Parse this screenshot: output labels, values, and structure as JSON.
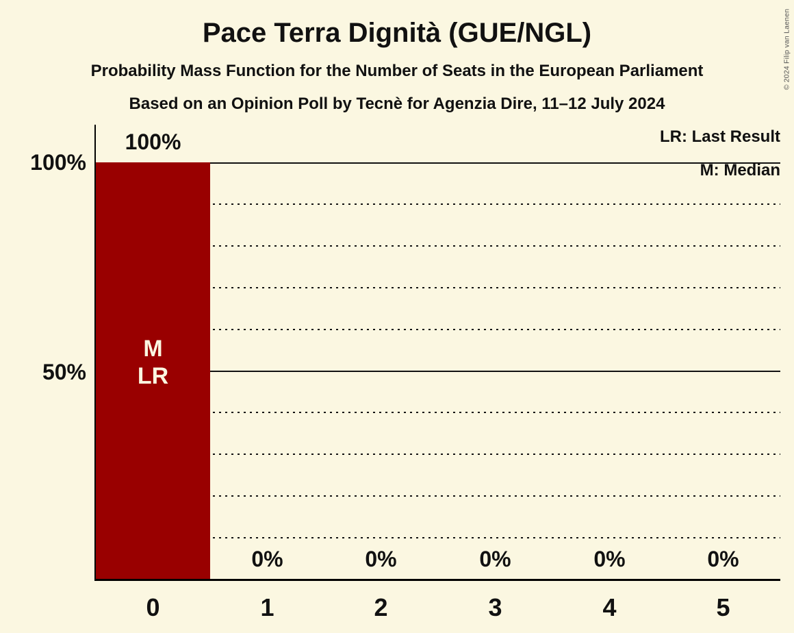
{
  "page": {
    "background_color": "#FBF7E1",
    "text_color": "#111111"
  },
  "header": {
    "title": "Pace Terra Dignità (GUE/NGL)",
    "subtitle1": "Probability Mass Function for the Number of Seats in the European Parliament",
    "subtitle2": "Based on an Opinion Poll by Tecnè for Agenzia Dire, 11–12 July 2024"
  },
  "legend": {
    "lr": "LR: Last Result",
    "m": "M: Median"
  },
  "copyright": "© 2024 Filip van Laenen",
  "chart_data": {
    "type": "bar",
    "title": "Pace Terra Dignità (GUE/NGL)",
    "categories": [
      "0",
      "1",
      "2",
      "3",
      "4",
      "5"
    ],
    "values": [
      100,
      0,
      0,
      0,
      0,
      0
    ],
    "value_labels": [
      "100%",
      "0%",
      "0%",
      "0%",
      "0%",
      "0%"
    ],
    "ylim": [
      0,
      100
    ],
    "ytick_labels": [
      "100%",
      "50%"
    ],
    "ytick_values": [
      100,
      50
    ],
    "solid_gridlines": [
      100,
      50
    ],
    "dotted_gridlines": [
      90,
      80,
      70,
      60,
      40,
      30,
      20,
      10
    ],
    "grid": true,
    "legend_position": "top-right",
    "bar_color": "#990000",
    "bar_label_color": "#FBF7E1",
    "bar_label_lines": [
      "M",
      "LR"
    ],
    "annotated_bar_index": 0,
    "median_seats": 0,
    "last_result_seats": 0
  }
}
